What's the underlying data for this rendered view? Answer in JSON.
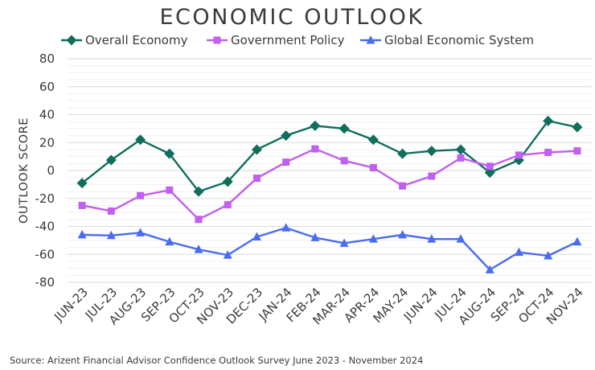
{
  "chart_data": {
    "type": "line",
    "title": "ECONOMIC OUTLOOK",
    "ylabel": "OUTLOOK SCORE",
    "xlabel": "",
    "ylim": [
      -80,
      80
    ],
    "yticks": [
      "80",
      "60",
      "40",
      "20",
      "0",
      "-20",
      "-40",
      "-60",
      "-80"
    ],
    "grid": true,
    "legend_position": "top",
    "categories": [
      "JUN-23",
      "JUL-23",
      "AUG-23",
      "SEP-23",
      "OCT-23",
      "NOV-23",
      "DEC-23",
      "JAN-24",
      "FEB-24",
      "MAR-24",
      "APR-24",
      "MAY-24",
      "JUN-24",
      "JUL-24",
      "AUG-24",
      "SEP-24",
      "OCT-24",
      "NOV-24"
    ],
    "series": [
      {
        "name": "Overall Economy",
        "color": "#0f6e5c",
        "marker": "diamond",
        "values": [
          -9,
          7.5,
          22,
          12,
          -15,
          -8,
          15,
          25,
          32,
          30,
          22,
          12,
          14,
          15,
          -1.5,
          7.5,
          35.5,
          31
        ]
      },
      {
        "name": "Government Policy",
        "color": "#c25ef0",
        "marker": "square",
        "values": [
          -25,
          -29,
          -18,
          -14,
          -35,
          -24.5,
          -5.5,
          6,
          15.5,
          7,
          2,
          -11,
          -4,
          9,
          3,
          11,
          13,
          14
        ]
      },
      {
        "name": "Global Economic System",
        "color": "#4a6cf0",
        "marker": "triangle",
        "values": [
          -46,
          -46.5,
          -44.5,
          -51,
          -56.5,
          -60.5,
          -47.5,
          -41,
          -48,
          -52,
          -49,
          -46,
          -49,
          -49,
          -71,
          -58.5,
          -61,
          -51
        ]
      }
    ],
    "source": "Source: Arizent Financial Advisor Confidence Outlook Survey June 2023 - November 2024"
  }
}
